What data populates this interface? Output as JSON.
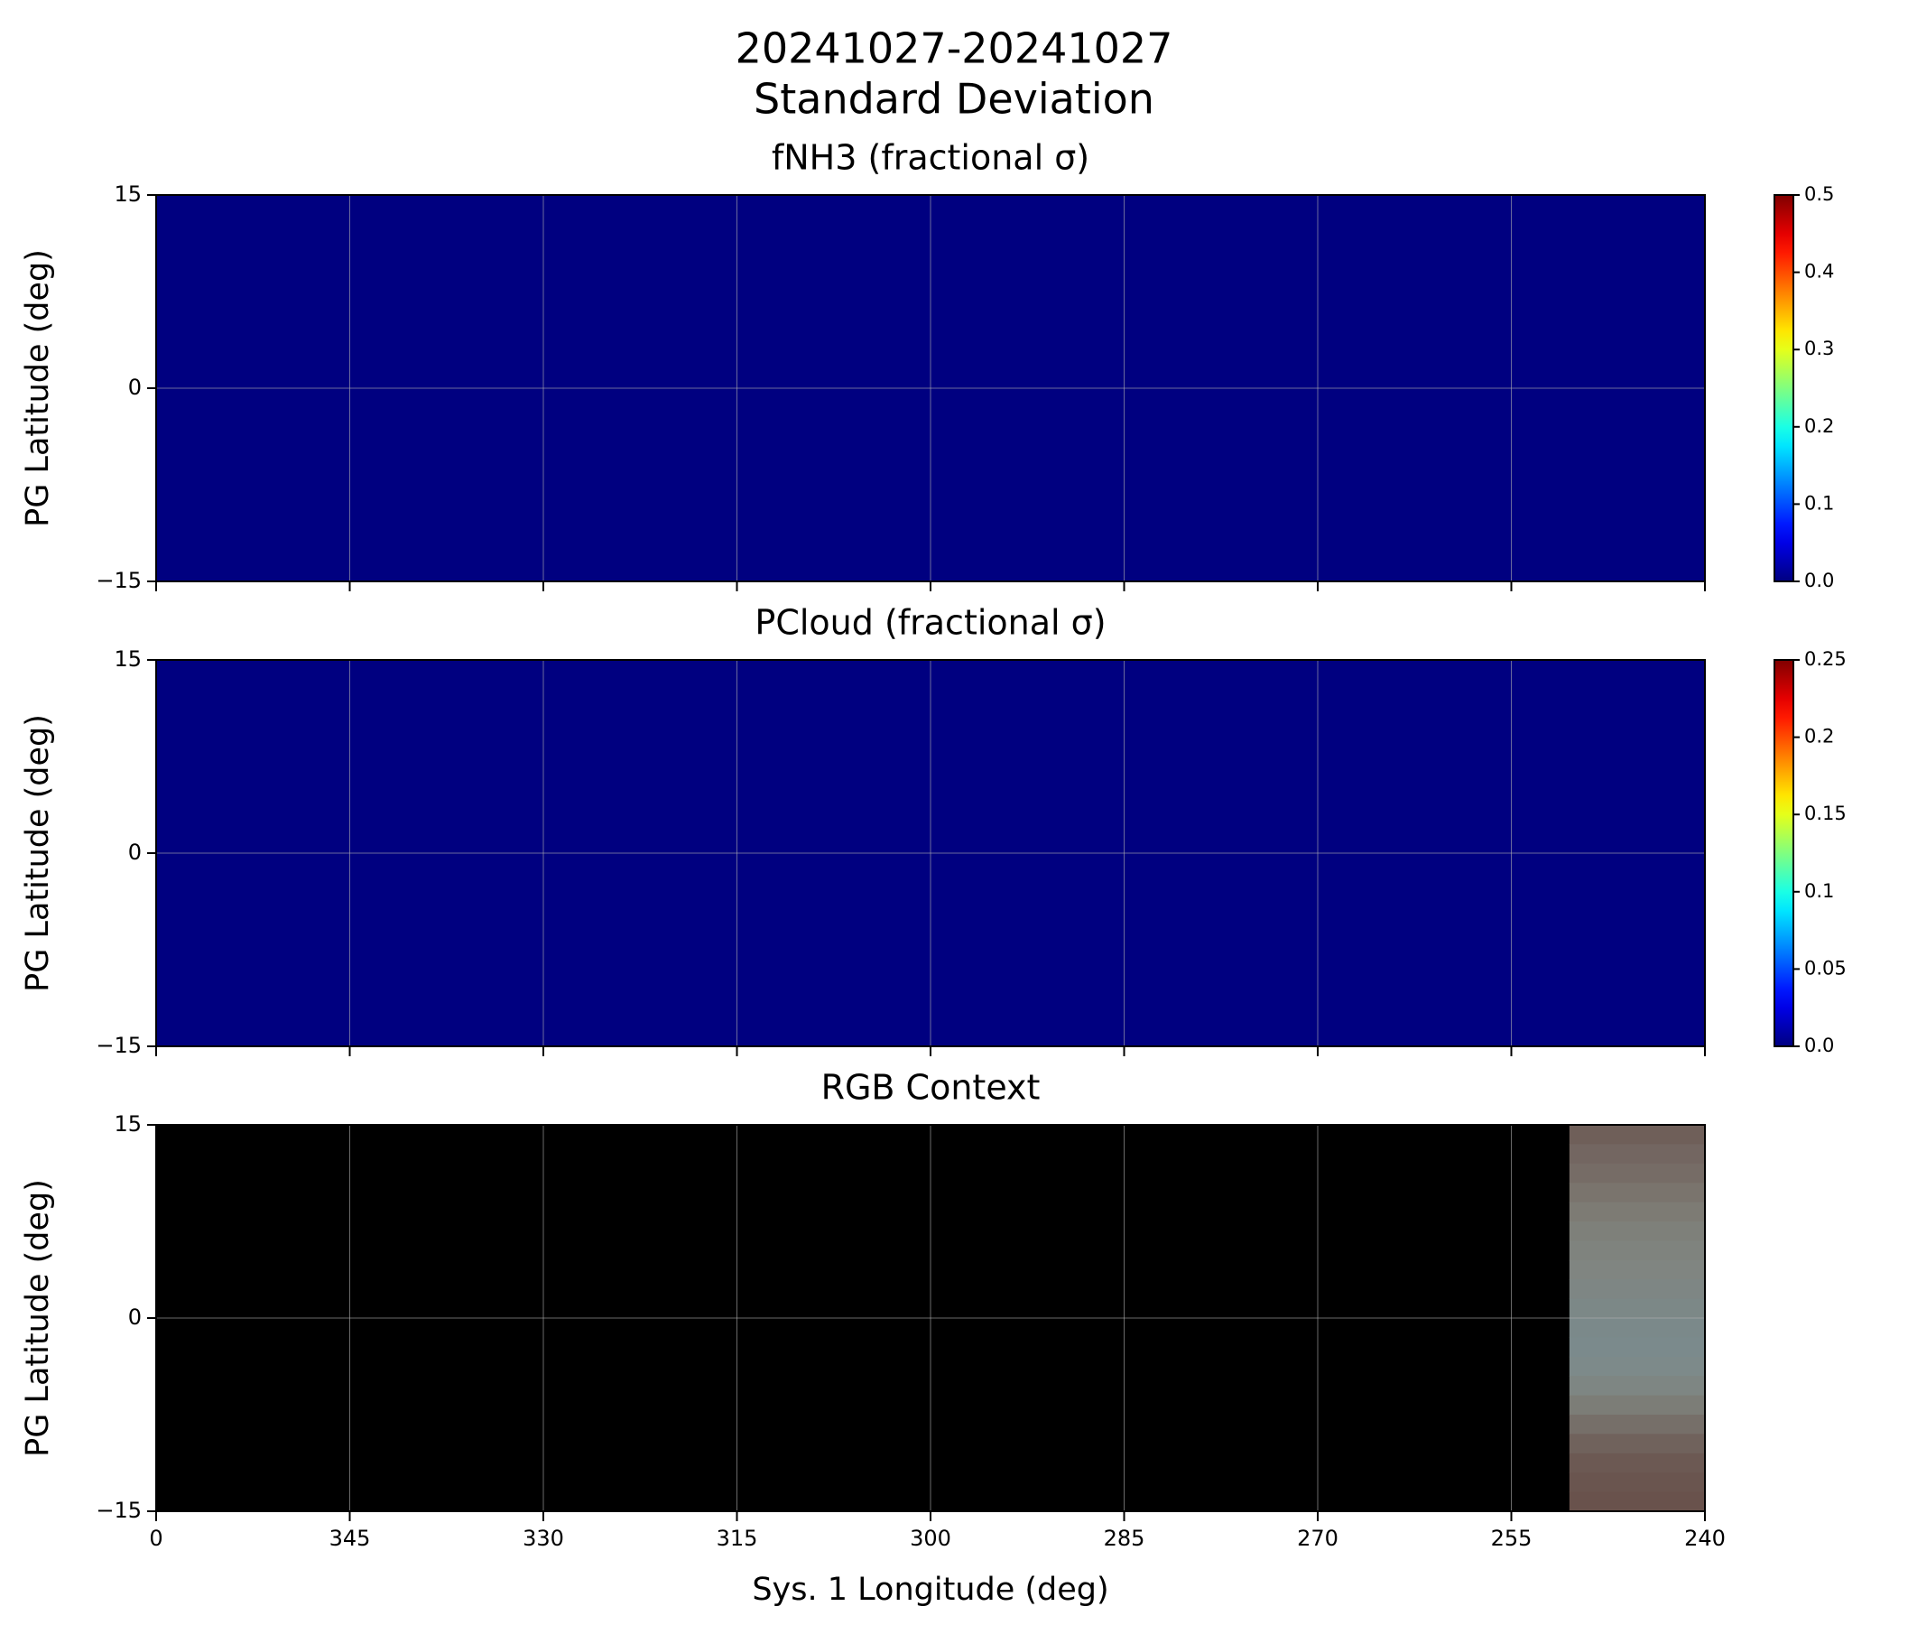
{
  "figure": {
    "title_lines": [
      "20241027-20241027",
      "Standard Deviation"
    ]
  },
  "chart_data": [
    {
      "type": "heatmap",
      "title": "fNH3 (fractional σ)",
      "ylabel": "PG Latitude (deg)",
      "xlim": [
        360,
        240
      ],
      "xticks": [
        {
          "value": 360,
          "label": "0"
        },
        345,
        330,
        315,
        300,
        285,
        270,
        255,
        240
      ],
      "ylim": [
        -15,
        15
      ],
      "yticks": [
        {
          "value": -15,
          "label": "−15"
        },
        0,
        15
      ],
      "grid": true,
      "z": [
        [
          0
        ]
      ],
      "colormap": "jet",
      "clim": [
        0,
        0.5
      ],
      "cticks": [
        {
          "value": 0,
          "label": "0.0"
        },
        0.1,
        0.2,
        0.3,
        0.4,
        0.5
      ]
    },
    {
      "type": "heatmap",
      "title": "PCloud (fractional σ)",
      "ylabel": "PG Latitude (deg)",
      "xlim": [
        360,
        240
      ],
      "xticks": [
        {
          "value": 360,
          "label": "0"
        },
        345,
        330,
        315,
        300,
        285,
        270,
        255,
        240
      ],
      "ylim": [
        -15,
        15
      ],
      "yticks": [
        {
          "value": -15,
          "label": "−15"
        },
        0,
        15
      ],
      "grid": true,
      "z": [
        [
          0
        ]
      ],
      "colormap": "jet",
      "clim": [
        0,
        0.25
      ],
      "cticks": [
        {
          "value": 0,
          "label": "0.0"
        },
        0.05,
        0.1,
        0.15,
        0.2,
        0.25
      ]
    },
    {
      "type": "image",
      "title": "RGB Context",
      "ylabel": "PG Latitude (deg)",
      "xlabel": "Sys. 1 Longitude (deg)",
      "xlim": [
        360,
        240
      ],
      "xticks": [
        {
          "value": 360,
          "label": "0"
        },
        345,
        330,
        315,
        300,
        285,
        270,
        255,
        240
      ],
      "ylim": [
        -15,
        15
      ],
      "yticks": [
        {
          "value": -15,
          "label": "−15"
        },
        0,
        15
      ],
      "grid": true,
      "background": "#000000",
      "image_x": [
        250.5,
        240
      ],
      "image_rows": [
        "#6f5f59",
        "#736661",
        "#766c66",
        "#7a746d",
        "#7d7b74",
        "#7e807a",
        "#7f837e",
        "#808581",
        "#7e8684",
        "#7c8887",
        "#7b898a",
        "#7b8a8c",
        "#7d8a8a",
        "#7e8683",
        "#7c7d77",
        "#766f69",
        "#70625c",
        "#6c5953",
        "#6a554f",
        "#69524c"
      ]
    }
  ]
}
